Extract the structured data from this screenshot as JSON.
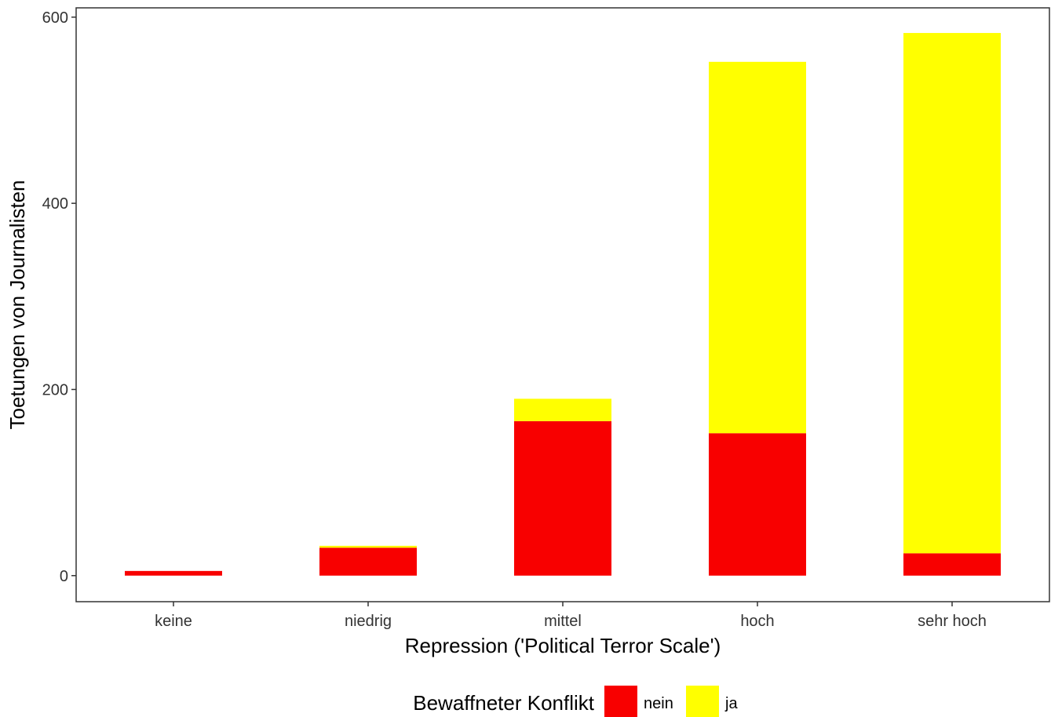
{
  "chart_data": {
    "type": "bar",
    "stacked": true,
    "categories": [
      "keine",
      "niedrig",
      "mittel",
      "hoch",
      "sehr hoch"
    ],
    "series": [
      {
        "name": "nein",
        "color": "#f80000",
        "values": [
          5,
          30,
          166,
          153,
          24
        ]
      },
      {
        "name": "ja",
        "color": "#ffff00",
        "values": [
          0,
          2,
          24,
          399,
          559
        ]
      }
    ],
    "xlabel": "Repression ('Political Terror Scale')",
    "ylabel": "Toetungen von Journalisten",
    "ylim": [
      -28,
      610
    ],
    "yticks": [
      0,
      200,
      400,
      600
    ],
    "grid": false,
    "legend": {
      "title": "Bewaffneter Konflikt",
      "position": "bottom"
    }
  }
}
